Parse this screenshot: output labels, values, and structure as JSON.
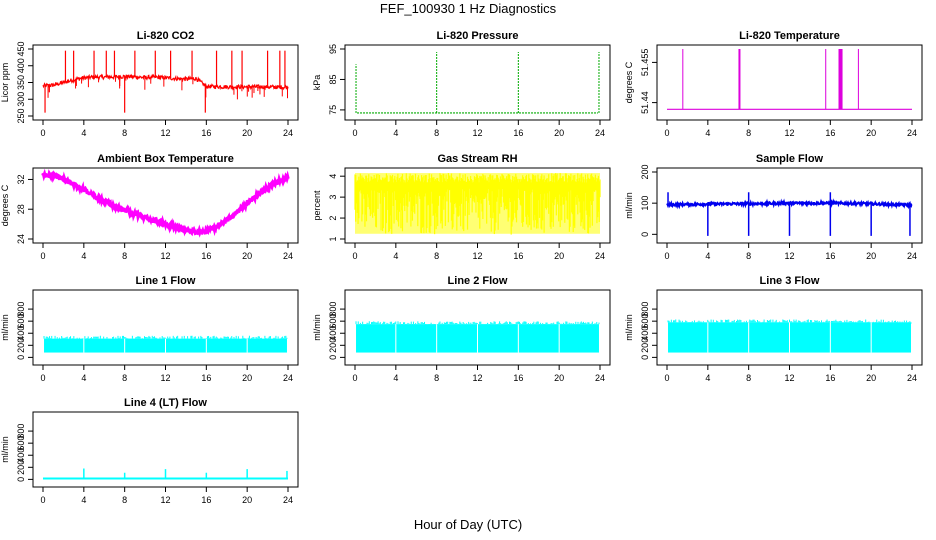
{
  "page": {
    "title": "FEF_100930  1 Hz Diagnostics",
    "xlabel": "Hour of Day (UTC)"
  },
  "chart_data": [
    {
      "type": "line",
      "title": "Li-820 CO2",
      "ylabel": "Licor ppm",
      "color": "#ff0000",
      "xlim": [
        0,
        24
      ],
      "ylim": [
        250,
        450
      ],
      "xticks": [
        0,
        4,
        8,
        12,
        16,
        20,
        24
      ],
      "yticks": [
        250,
        300,
        350,
        400,
        450
      ],
      "series": [
        {
          "x": [
            0,
            1,
            2,
            3,
            4,
            5,
            6,
            7,
            8,
            9,
            10,
            11,
            12,
            13,
            14,
            15,
            16,
            17,
            18,
            19,
            20,
            21,
            22,
            23,
            24
          ],
          "y": [
            340,
            342,
            350,
            358,
            364,
            366,
            366,
            367,
            368,
            367,
            365,
            366,
            364,
            362,
            360,
            362,
            338,
            338,
            337,
            337,
            337,
            337,
            337,
            336,
            336
          ]
        }
      ]
    },
    {
      "type": "line",
      "title": "Li-820 Pressure",
      "ylabel": "kPa",
      "color": "#00aa00",
      "xlim": [
        0,
        24
      ],
      "ylim": [
        73,
        95
      ],
      "xticks": [
        0,
        4,
        8,
        12,
        16,
        20,
        24
      ],
      "yticks": [
        75,
        85,
        95
      ],
      "series": [
        {
          "x": [
            0,
            4,
            8,
            12,
            16,
            20,
            24
          ],
          "y": [
            74,
            74,
            74,
            74,
            74,
            74,
            74
          ]
        }
      ]
    },
    {
      "type": "line",
      "title": "Li-820 Temperature",
      "ylabel": "degrees C",
      "color": "#dd00dd",
      "xlim": [
        0,
        24
      ],
      "ylim": [
        51.435,
        51.46
      ],
      "xticks": [
        0,
        4,
        8,
        12,
        16,
        20,
        24
      ],
      "yticks": [
        51.44,
        51.455
      ],
      "series": [
        {
          "x": [
            0,
            24
          ],
          "y": [
            51.4375,
            51.4375
          ]
        }
      ]
    },
    {
      "type": "line",
      "title": "Ambient Box Temperature",
      "ylabel": "degrees C",
      "color": "#ff00ff",
      "xlim": [
        0,
        24
      ],
      "ylim": [
        24,
        33
      ],
      "xticks": [
        0,
        4,
        8,
        12,
        16,
        20,
        24
      ],
      "yticks": [
        24,
        28,
        32
      ],
      "series": [
        {
          "x": [
            0,
            1,
            2,
            3,
            4,
            5,
            6,
            7,
            8,
            9,
            10,
            11,
            12,
            13,
            14,
            15,
            16,
            17,
            18,
            19,
            20,
            21,
            22,
            23,
            24
          ],
          "y": [
            32.6,
            32.5,
            32.0,
            31.3,
            30.6,
            29.8,
            29.1,
            28.5,
            27.9,
            27.4,
            26.9,
            26.5,
            26.0,
            25.6,
            25.2,
            25.0,
            25.1,
            25.6,
            26.5,
            27.6,
            28.8,
            29.9,
            30.9,
            31.7,
            32.3
          ]
        }
      ]
    },
    {
      "type": "area",
      "title": "Gas Stream RH",
      "ylabel": "percent",
      "color": "#ffff00",
      "xlim": [
        0,
        24
      ],
      "ylim": [
        1,
        4.2
      ],
      "xticks": [
        0,
        4,
        8,
        12,
        16,
        20,
        24
      ],
      "yticks": [
        1.0,
        2.0,
        3.0,
        4.0
      ],
      "series": [
        {
          "name": "",
          "x": [
            0,
            24
          ],
          "y": [
            4.1,
            4.1
          ]
        }
      ]
    },
    {
      "type": "line",
      "title": "Sample Flow",
      "ylabel": "ml/min",
      "color": "#0000ee",
      "xlim": [
        0,
        24
      ],
      "ylim": [
        -15,
        200
      ],
      "xticks": [
        0,
        4,
        8,
        12,
        16,
        20,
        24
      ],
      "yticks": [
        0,
        100,
        200
      ],
      "series": [
        {
          "x": [
            0,
            2,
            4,
            6,
            8,
            10,
            12,
            14,
            16,
            18,
            20,
            22,
            24
          ],
          "y": [
            95,
            96,
            97,
            98,
            98,
            99,
            100,
            100,
            100,
            99,
            98,
            96,
            94
          ]
        }
      ]
    },
    {
      "type": "area",
      "title": "Line 1 Flow",
      "ylabel": "ml/min",
      "color": "#00ffff",
      "xlim": [
        0,
        24
      ],
      "ylim": [
        -60,
        1050
      ],
      "xticks": [
        0,
        4,
        8,
        12,
        16,
        20,
        24
      ],
      "yticks": [
        0,
        200,
        400,
        600,
        800
      ],
      "series": [
        {
          "x": [
            0,
            24
          ],
          "y": [
            310,
            310
          ]
        }
      ]
    },
    {
      "type": "area",
      "title": "Line 2 Flow",
      "ylabel": "ml/min",
      "color": "#00ffff",
      "xlim": [
        0,
        24
      ],
      "ylim": [
        -60,
        1050
      ],
      "xticks": [
        0,
        4,
        8,
        12,
        16,
        20,
        24
      ],
      "yticks": [
        0,
        200,
        400,
        600,
        800
      ],
      "series": [
        {
          "x": [
            0,
            24
          ],
          "y": [
            550,
            550
          ]
        }
      ]
    },
    {
      "type": "area",
      "title": "Line 3 Flow",
      "ylabel": "ml/min",
      "color": "#00ffff",
      "xlim": [
        0,
        24
      ],
      "ylim": [
        -60,
        1050
      ],
      "xticks": [
        0,
        4,
        8,
        12,
        16,
        20,
        24
      ],
      "yticks": [
        0,
        200,
        400,
        600,
        800
      ],
      "series": [
        {
          "x": [
            0,
            24
          ],
          "y": [
            580,
            580
          ]
        }
      ]
    },
    {
      "type": "line",
      "title": "Line 4 (LT) Flow",
      "ylabel": "ml/min",
      "color": "#00ffff",
      "xlim": [
        0,
        24
      ],
      "ylim": [
        -60,
        1050
      ],
      "xticks": [
        0,
        4,
        8,
        12,
        16,
        20,
        24
      ],
      "yticks": [
        0,
        200,
        400,
        600,
        800
      ],
      "series": [
        {
          "x": [
            0,
            4,
            8,
            12,
            16,
            20,
            24
          ],
          "y": [
            15,
            15,
            15,
            15,
            15,
            15,
            15
          ]
        }
      ]
    }
  ]
}
